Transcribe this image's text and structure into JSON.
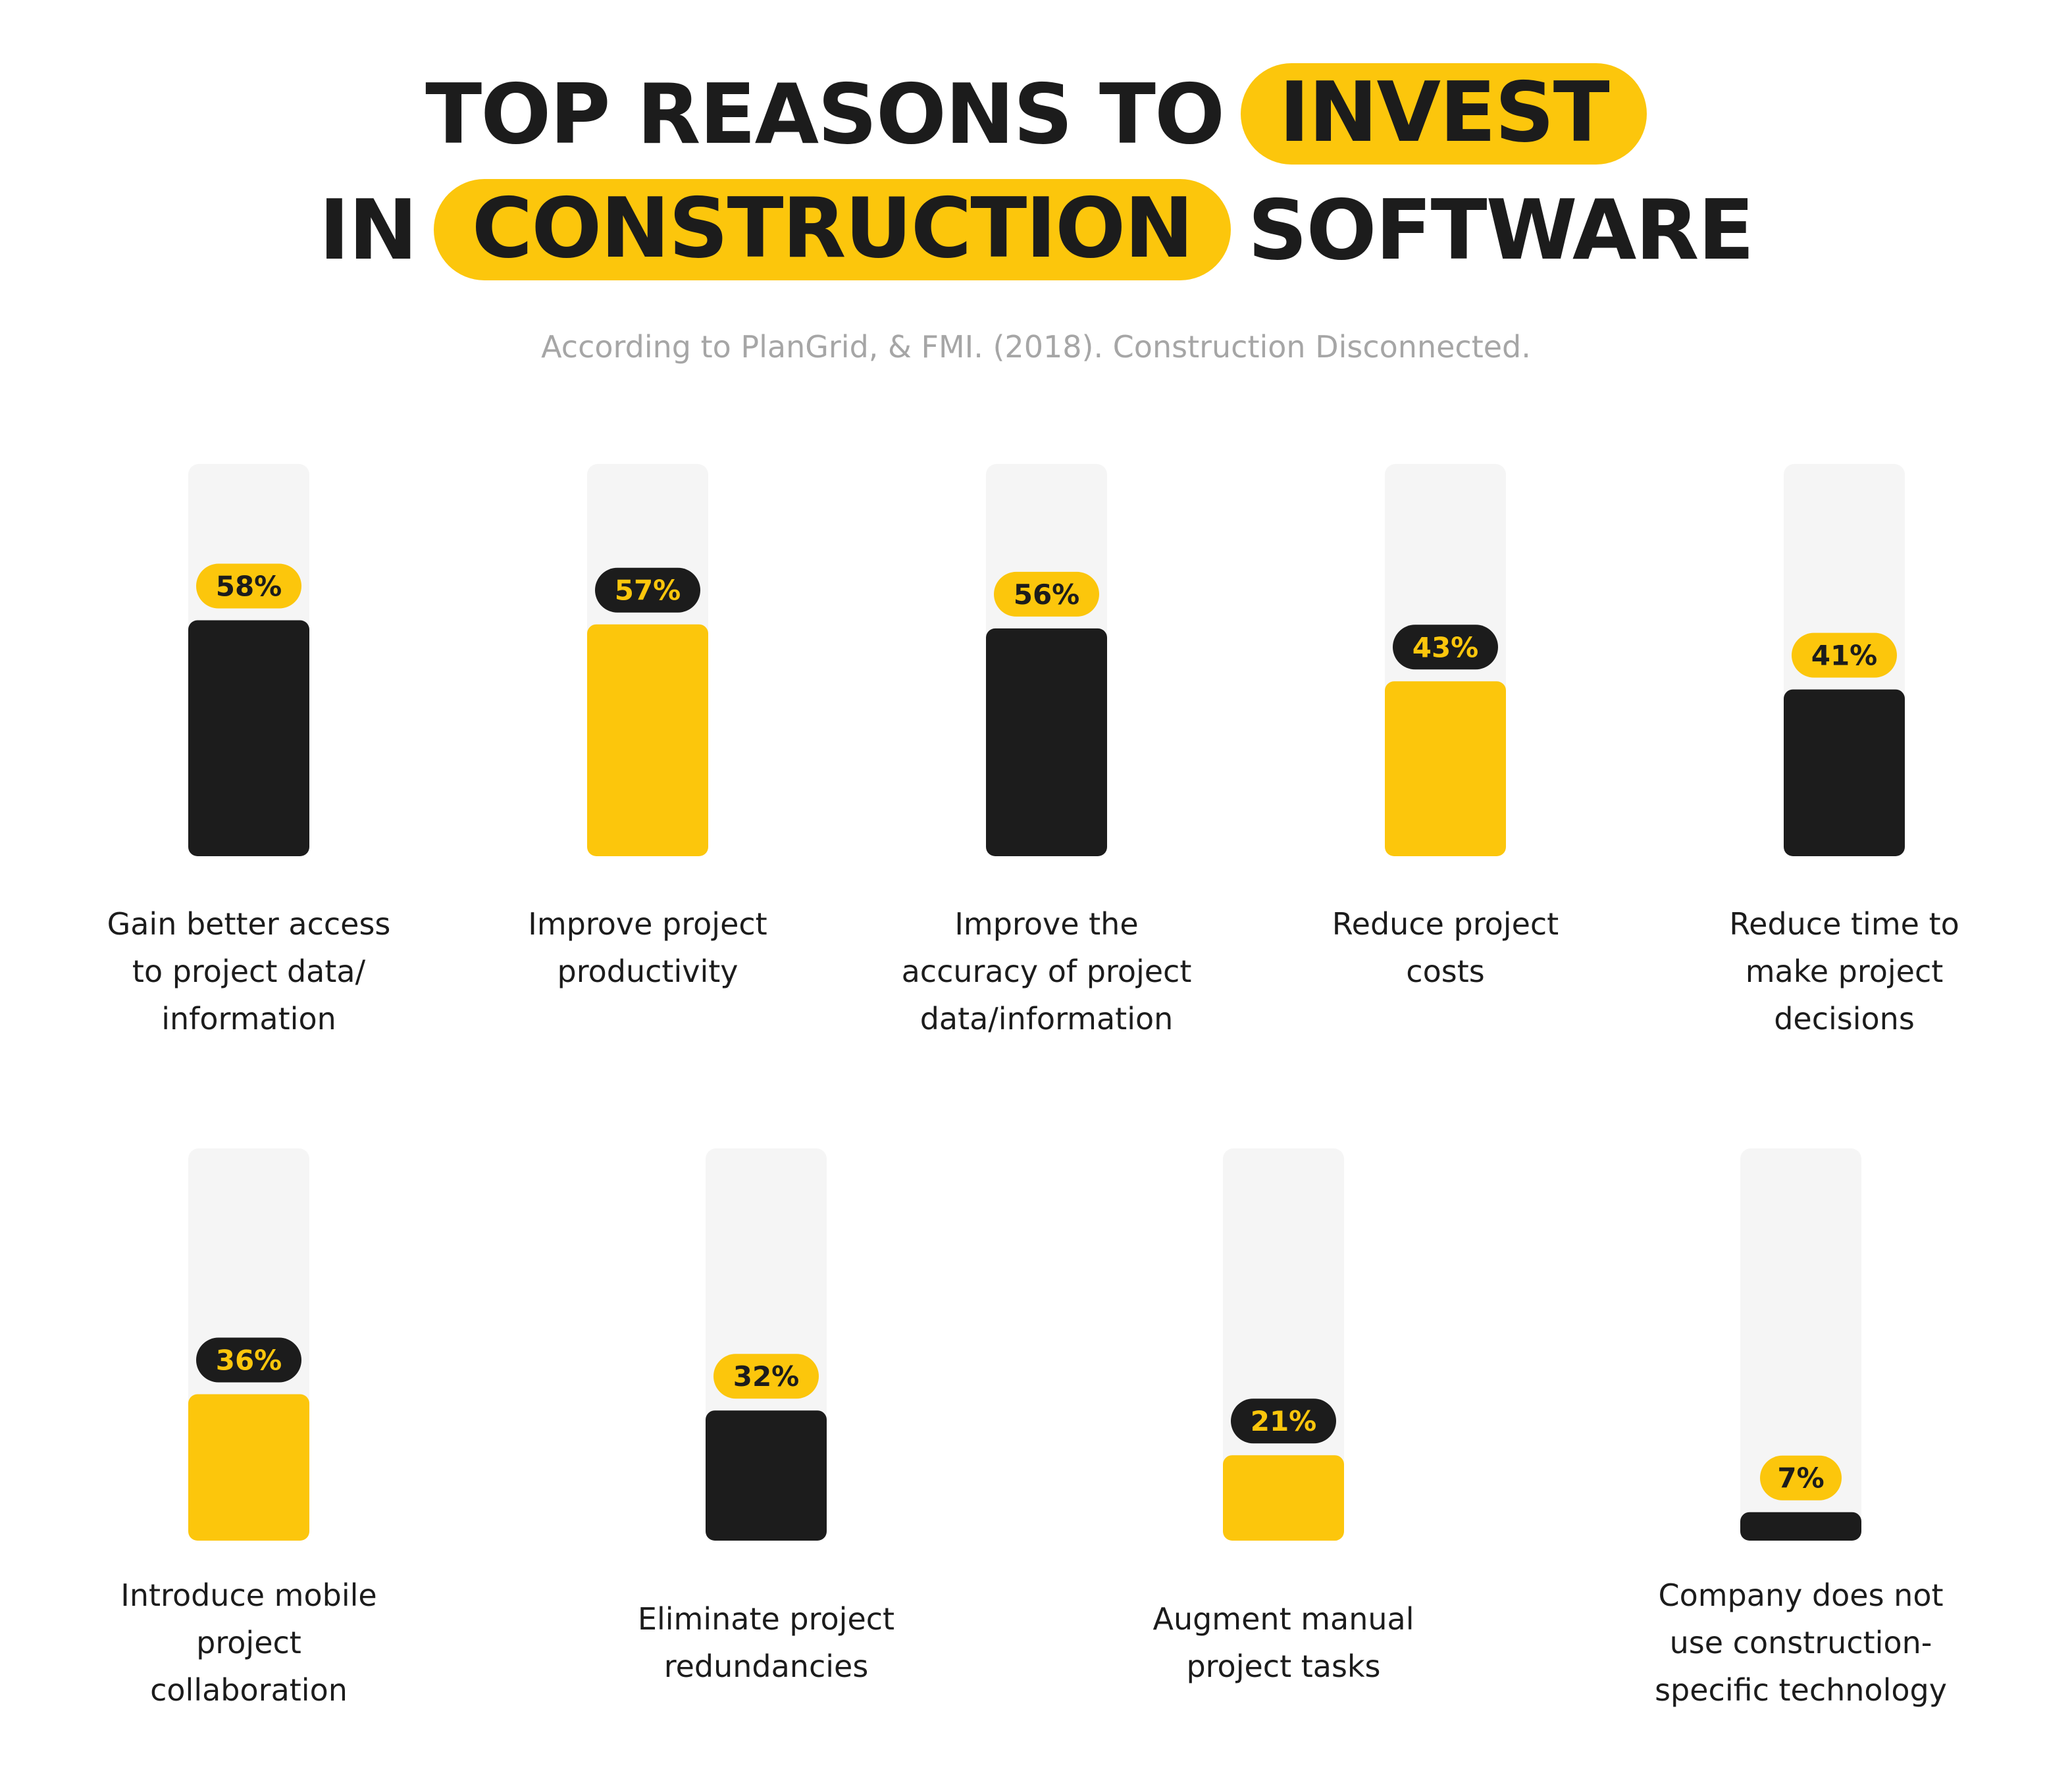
{
  "title": {
    "line1": {
      "before": "TOP REASONS TO",
      "highlight": "INVEST"
    },
    "line2": {
      "before": "IN",
      "highlight": "CONSTRUCTION",
      "after": "SOFTWARE"
    }
  },
  "subtitle": "According to PlanGrid, & FMI. (2018). Construction Disconnected.",
  "colors": {
    "accent": "#fcc60c",
    "dark": "#1c1c1c",
    "track": "#f5f5f5",
    "subtitle": "#a6a6a6"
  },
  "chart_data": {
    "type": "bar",
    "title": "TOP REASONS TO INVEST IN CONSTRUCTION SOFTWARE",
    "subtitle": "According to PlanGrid, & FMI. (2018). Construction Disconnected.",
    "ylim": [
      0,
      100
    ],
    "grid": false,
    "legend": "none",
    "categories": [
      [
        "Gain better access",
        "to project data/",
        "information"
      ],
      [
        "Improve project",
        "productivity"
      ],
      [
        "Improve the",
        "accuracy of project",
        "data/information"
      ],
      [
        "Reduce project",
        "costs"
      ],
      [
        "Reduce time to",
        "make project",
        "decisions"
      ],
      [
        "Introduce mobile",
        "project",
        "collaboration"
      ],
      [
        "Eliminate project",
        "redundancies"
      ],
      [
        "Augment manual",
        "project tasks"
      ],
      [
        "Company does not",
        "use construction-",
        "specific technology"
      ]
    ],
    "values": [
      58,
      57,
      56,
      43,
      41,
      36,
      32,
      21,
      7
    ],
    "value_labels": [
      "58%",
      "57%",
      "56%",
      "43%",
      "41%",
      "36%",
      "32%",
      "21%",
      "7%"
    ],
    "bar_colors": [
      "dark",
      "accent",
      "dark",
      "accent",
      "dark",
      "accent",
      "dark",
      "accent",
      "dark"
    ]
  }
}
